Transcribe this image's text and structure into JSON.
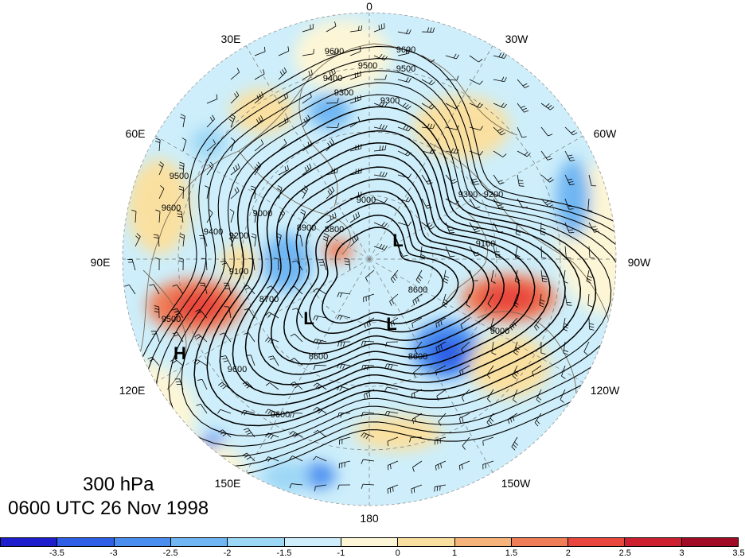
{
  "title": {
    "level": "300 hPa",
    "datetime": "0600 UTC 26 Nov 1998"
  },
  "longitude_labels": [
    "0",
    "30W",
    "60W",
    "90W",
    "120W",
    "150W",
    "180",
    "150E",
    "120E",
    "90E",
    "60E",
    "30E"
  ],
  "contour_labels": [
    "9600",
    "9600",
    "9500",
    "9500",
    "9400",
    "9300",
    "9300",
    "9200",
    "9100",
    "9000",
    "9000",
    "8900",
    "8800",
    "8700",
    "8600",
    "8600",
    "9500",
    "9500",
    "9600",
    "9600",
    "9400",
    "9300",
    "9200",
    "9100",
    "9000",
    "8600",
    "9600"
  ],
  "pressure_centers": [
    "L",
    "L",
    "L",
    "H"
  ],
  "colorbar": {
    "colors": [
      "#1e1ecc",
      "#2e5fe6",
      "#4a8ef0",
      "#6fb6f3",
      "#9dd7f6",
      "#cdeefa",
      "#fdf6d6",
      "#fae0a0",
      "#f6b37a",
      "#ef7e58",
      "#e9463d",
      "#cc1f30",
      "#a00c26"
    ],
    "tick_labels": [
      "-3.5",
      "-3",
      "-2.5",
      "-2",
      "-1.5",
      "-1",
      "0",
      "1",
      "1.5",
      "2",
      "2.5",
      "3",
      "3.5"
    ]
  },
  "map_colors": {
    "continent": "#7a6a55",
    "grid": "#777777",
    "contour": "#000000"
  }
}
